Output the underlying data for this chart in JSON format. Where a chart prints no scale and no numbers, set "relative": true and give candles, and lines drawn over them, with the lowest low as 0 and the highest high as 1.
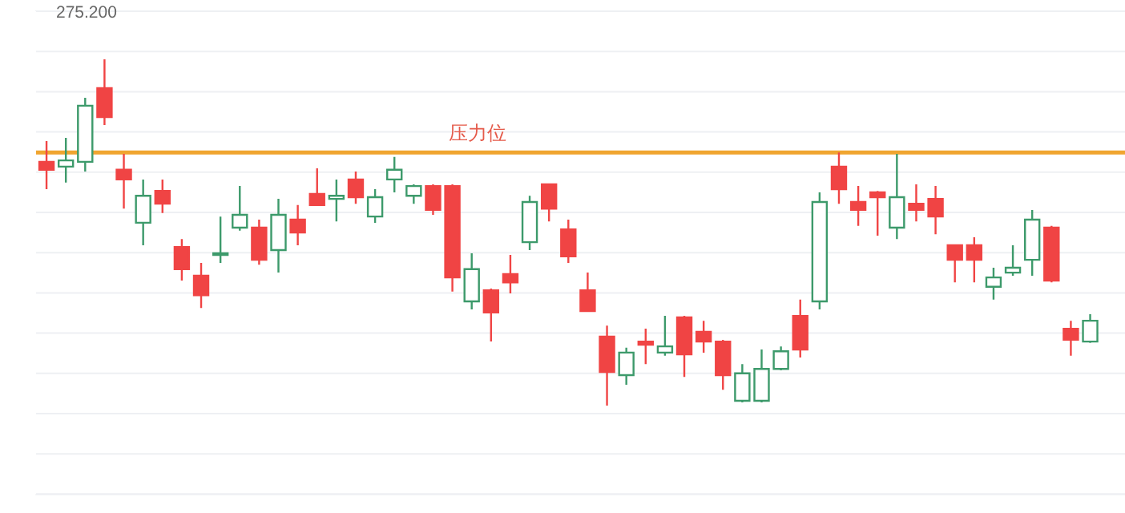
{
  "chart_data": {
    "type": "candlestick",
    "relative": true,
    "grid": "y",
    "annotations": [
      "275.200"
    ],
    "categories": [
      null,
      null,
      null,
      null,
      null,
      null,
      null,
      null,
      null,
      null,
      null,
      null,
      null,
      null,
      null,
      null,
      null,
      null,
      null,
      null,
      null,
      null,
      null,
      null,
      null,
      null,
      null,
      null,
      null,
      null,
      null,
      null,
      null,
      null,
      null,
      null,
      null,
      null,
      null,
      null,
      null,
      null,
      null,
      null,
      null,
      null,
      null,
      null,
      null,
      null,
      null,
      null,
      null,
      null,
      null
    ],
    "colors": [
      "#f04444",
      "#3d9a6b",
      "#3d9a6b",
      "#f04444",
      "#f04444",
      "#3d9a6b",
      "#f04444",
      "#f04444",
      "#f04444",
      "#3d9a6b",
      "#3d9a6b",
      "#f04444",
      "#3d9a6b",
      "#f04444",
      "#f04444",
      "#3d9a6b",
      "#f04444",
      "#3d9a6b",
      "#3d9a6b",
      "#3d9a6b",
      "#f04444",
      "#f04444",
      "#3d9a6b",
      "#f04444",
      "#f04444",
      "#3d9a6b",
      "#f04444",
      "#f04444",
      "#f04444",
      "#f04444",
      "#3d9a6b",
      "#f04444",
      "#3d9a6b",
      "#f04444",
      "#f04444",
      "#f04444",
      "#3d9a6b",
      "#3d9a6b",
      "#3d9a6b",
      "#f04444",
      "#3d9a6b",
      "#f04444",
      "#f04444",
      "#f04444",
      "#3d9a6b",
      "#f04444",
      "#f04444",
      "#f04444",
      "#f04444",
      "#3d9a6b",
      "#3d9a6b",
      "#3d9a6b",
      "#f04444",
      "#f04444",
      "#3d9a6b"
    ],
    "ref_lines": [
      {
        "axis": "y",
        "value": 0.731,
        "label": "压力位",
        "color": "#f0a530"
      }
    ],
    "ohlc": [
      [
        0.681,
        0.764,
        0.625,
        0.704
      ],
      [
        0.708,
        0.773,
        0.644,
        0.69
      ],
      [
        0.866,
        0.889,
        0.676,
        0.704
      ],
      [
        0.833,
        1,
        0.81,
        0.917
      ],
      [
        0.653,
        0.727,
        0.569,
        0.681
      ],
      [
        0.606,
        0.653,
        0.463,
        0.528
      ],
      [
        0.583,
        0.653,
        0.556,
        0.62
      ],
      [
        0.394,
        0.481,
        0.361,
        0.458
      ],
      [
        0.319,
        0.412,
        0.282,
        0.375
      ],
      [
        0.44,
        0.546,
        0.412,
        0.435
      ],
      [
        0.551,
        0.634,
        0.505,
        0.514
      ],
      [
        0.421,
        0.537,
        0.407,
        0.514
      ],
      [
        0.551,
        0.597,
        0.384,
        0.449
      ],
      [
        0.5,
        0.579,
        0.463,
        0.537
      ],
      [
        0.579,
        0.685,
        0.579,
        0.611
      ],
      [
        0.606,
        0.653,
        0.532,
        0.597
      ],
      [
        0.602,
        0.676,
        0.583,
        0.653
      ],
      [
        0.602,
        0.625,
        0.528,
        0.546
      ],
      [
        0.681,
        0.718,
        0.616,
        0.653
      ],
      [
        0.634,
        0.639,
        0.583,
        0.606
      ],
      [
        0.565,
        0.639,
        0.551,
        0.634
      ],
      [
        0.37,
        0.639,
        0.329,
        0.634
      ],
      [
        0.394,
        0.44,
        0.278,
        0.301
      ],
      [
        0.269,
        0.338,
        0.185,
        0.333
      ],
      [
        0.356,
        0.435,
        0.324,
        0.38
      ],
      [
        0.588,
        0.606,
        0.449,
        0.472
      ],
      [
        0.569,
        0.639,
        0.532,
        0.639
      ],
      [
        0.431,
        0.537,
        0.412,
        0.509
      ],
      [
        0.273,
        0.384,
        0.273,
        0.333
      ],
      [
        0.097,
        0.231,
        0,
        0.199
      ],
      [
        0.153,
        0.167,
        0.06,
        0.088
      ],
      [
        0.176,
        0.222,
        0.12,
        0.185
      ],
      [
        0.171,
        0.259,
        0.144,
        0.153
      ],
      [
        0.148,
        0.259,
        0.083,
        0.255
      ],
      [
        0.185,
        0.245,
        0.153,
        0.213
      ],
      [
        0.088,
        0.19,
        0.046,
        0.185
      ],
      [
        0.093,
        0.12,
        0.009,
        0.014
      ],
      [
        0.106,
        0.162,
        0.009,
        0.014
      ],
      [
        0.157,
        0.171,
        0.102,
        0.106
      ],
      [
        0.162,
        0.306,
        0.139,
        0.259
      ],
      [
        0.588,
        0.616,
        0.278,
        0.301
      ],
      [
        0.625,
        0.731,
        0.583,
        0.69
      ],
      [
        0.565,
        0.634,
        0.519,
        0.588
      ],
      [
        0.602,
        0.62,
        0.491,
        0.616
      ],
      [
        0.602,
        0.727,
        0.481,
        0.514
      ],
      [
        0.565,
        0.639,
        0.532,
        0.583
      ],
      [
        0.546,
        0.634,
        0.495,
        0.597
      ],
      [
        0.421,
        0.463,
        0.356,
        0.463
      ],
      [
        0.421,
        0.486,
        0.356,
        0.463
      ],
      [
        0.37,
        0.398,
        0.306,
        0.343
      ],
      [
        0.398,
        0.463,
        0.375,
        0.384
      ],
      [
        0.537,
        0.565,
        0.375,
        0.421
      ],
      [
        0.361,
        0.519,
        0.356,
        0.514
      ],
      [
        0.19,
        0.245,
        0.144,
        0.222
      ],
      [
        0.245,
        0.264,
        0.181,
        0.185
      ]
    ]
  }
}
